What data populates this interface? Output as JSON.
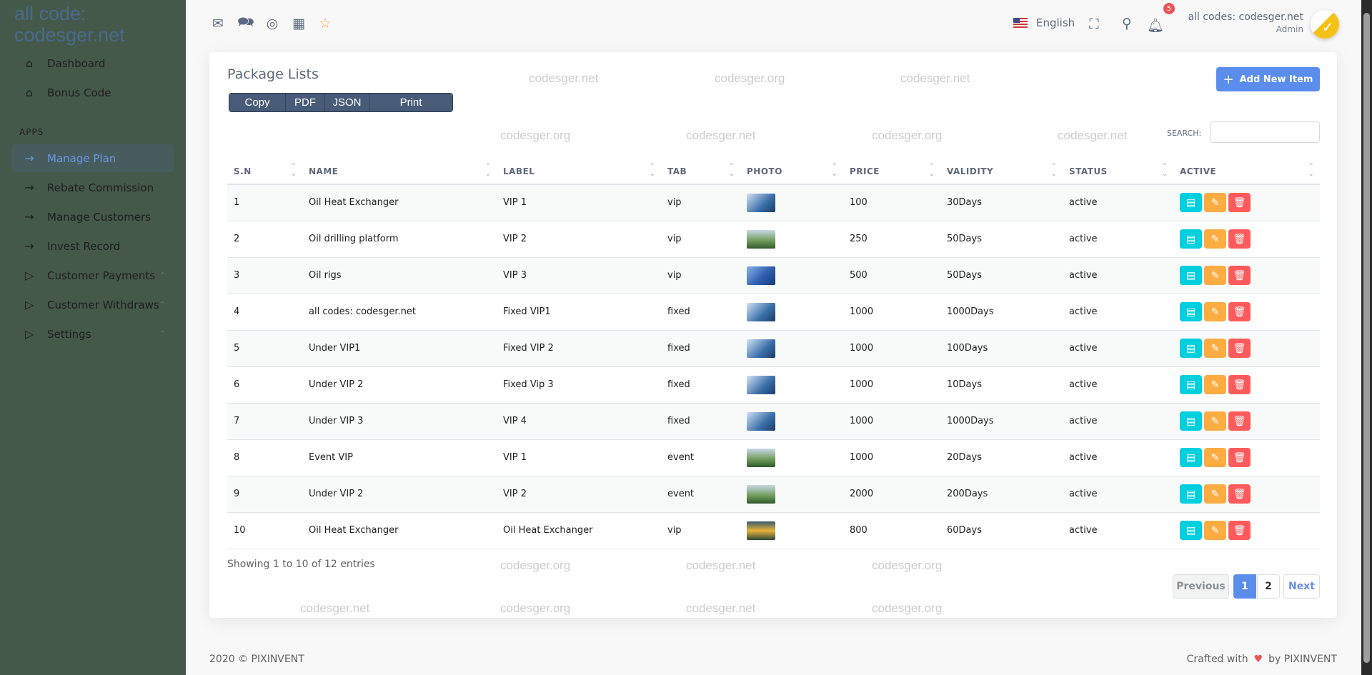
{
  "brand": "all code: codesger.net",
  "sidebar": {
    "section_label": "APPS",
    "items": [
      {
        "label": "Dashboard",
        "icon": "home-icon"
      },
      {
        "label": "Bonus Code",
        "icon": "home-icon"
      },
      {
        "label": "Manage Plan",
        "icon": "arrow-right-icon",
        "active": true
      },
      {
        "label": "Rebate Commission",
        "icon": "arrow-right-icon"
      },
      {
        "label": "Manage Customers",
        "icon": "arrow-right-icon"
      },
      {
        "label": "Invest Record",
        "icon": "arrow-right-icon"
      },
      {
        "label": "Customer Payments",
        "icon": "play-icon",
        "expandable": true
      },
      {
        "label": "Customer Withdraws",
        "icon": "play-icon",
        "expandable": true
      },
      {
        "label": "Settings",
        "icon": "play-icon",
        "expandable": true
      }
    ]
  },
  "topbar": {
    "language": "English",
    "notification_count": "5",
    "user_name": "all codes: codesger.net",
    "user_role": "Admin"
  },
  "card": {
    "title": "Package Lists",
    "export_buttons": [
      "Copy",
      "PDF",
      "JSON",
      "Print"
    ],
    "add_button": "Add New Item",
    "search_label": "SEARCH:",
    "search_value": "",
    "columns": [
      "S.N",
      "NAME",
      "LABEL",
      "TAB",
      "PHOTO",
      "PRICE",
      "VALIDITY",
      "STATUS",
      "ACTIVE"
    ],
    "rows": [
      {
        "sn": "1",
        "name": "Oil Heat Exchanger",
        "label": "VIP 1",
        "tab": "vip",
        "photo": "solar",
        "price": "100",
        "validity": "30Days",
        "status": "active"
      },
      {
        "sn": "2",
        "name": "Oil drilling platform",
        "label": "VIP 2",
        "tab": "vip",
        "photo": "green",
        "price": "250",
        "validity": "50Days",
        "status": "active"
      },
      {
        "sn": "3",
        "name": "Oil rigs",
        "label": "VIP 3",
        "tab": "vip",
        "photo": "blue",
        "price": "500",
        "validity": "50Days",
        "status": "active"
      },
      {
        "sn": "4",
        "name": "all codes: codesger.net",
        "label": "Fixed VIP1",
        "tab": "fixed",
        "photo": "solar",
        "price": "1000",
        "validity": "1000Days",
        "status": "active"
      },
      {
        "sn": "5",
        "name": "Under VIP1",
        "label": "Fixed VIP 2",
        "tab": "fixed",
        "photo": "solar",
        "price": "1000",
        "validity": "100Days",
        "status": "active"
      },
      {
        "sn": "6",
        "name": "Under VIP 2",
        "label": "Fixed Vip 3",
        "tab": "fixed",
        "photo": "solar",
        "price": "1000",
        "validity": "10Days",
        "status": "active"
      },
      {
        "sn": "7",
        "name": "Under VIP 3",
        "label": "VIP 4",
        "tab": "fixed",
        "photo": "solar",
        "price": "1000",
        "validity": "1000Days",
        "status": "active"
      },
      {
        "sn": "8",
        "name": "Event VIP",
        "label": "VIP 1",
        "tab": "event",
        "photo": "green",
        "price": "1000",
        "validity": "20Days",
        "status": "active"
      },
      {
        "sn": "9",
        "name": "Under VIP 2",
        "label": "VIP 2",
        "tab": "event",
        "photo": "green",
        "price": "2000",
        "validity": "200Days",
        "status": "active"
      },
      {
        "sn": "10",
        "name": "Oil Heat Exchanger",
        "label": "Oil Heat Exchanger",
        "tab": "vip",
        "photo": "sunset",
        "price": "800",
        "validity": "60Days",
        "status": "active"
      }
    ],
    "showing": "Showing 1 to 10 of 12 entries",
    "pagination": {
      "previous": "Previous",
      "pages": [
        "1",
        "2"
      ],
      "current": "1",
      "next": "Next"
    }
  },
  "footer": {
    "left": "2020 © PIXINVENT",
    "right_prefix": "Crafted with",
    "right_suffix": "by PIXINVENT"
  },
  "watermarks": [
    "codesger.net",
    "codesger.org"
  ],
  "colors": {
    "sidebar": "#44594a",
    "accent": "#5b8ded",
    "view": "#00cfdd",
    "edit": "#fdac41",
    "delete": "#ff5b5c"
  }
}
